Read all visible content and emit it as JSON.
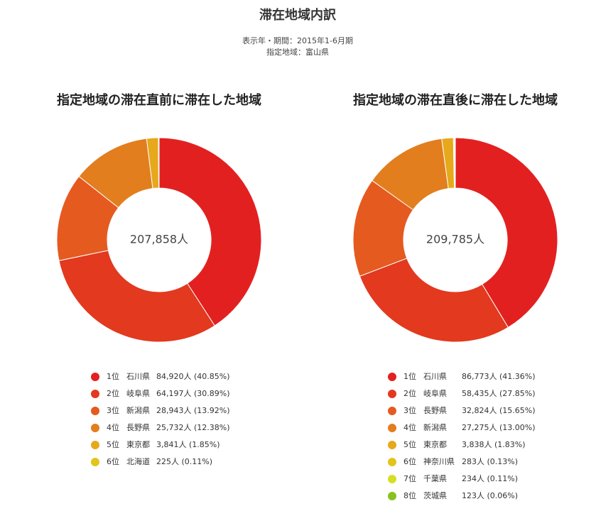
{
  "header": {
    "title": "滞在地域内訳",
    "subtitle": [
      "表示年・期間：2015年1-6月期",
      "指定地域：富山県"
    ]
  },
  "chart_data": [
    {
      "type": "donut",
      "title": "指定地域の滞在直前に滞在した地域",
      "center": {
        "value": 207858,
        "label": "207,858人"
      },
      "ranks": [
        "1位",
        "2位",
        "3位",
        "4位",
        "5位",
        "6位"
      ],
      "categories": [
        "石川県",
        "岐阜県",
        "新潟県",
        "長野県",
        "東京都",
        "北海道"
      ],
      "values": [
        84920,
        64197,
        28943,
        25732,
        3841,
        225
      ],
      "value_labels": [
        "84,920人 (40.85%)",
        "64,197人 (30.89%)",
        "28,943人 (13.92%)",
        "25,732人 (12.38%)",
        "3,841人 (1.85%)",
        "225人 (0.11%)"
      ],
      "colors": [
        "#e32020",
        "#e2391f",
        "#e55a1f",
        "#e27e1e",
        "#e6a91b",
        "#e2c41c"
      ]
    },
    {
      "type": "donut",
      "title": "指定地域の滞在直後に滞在した地域",
      "center": {
        "value": 209785,
        "label": "209,785人"
      },
      "ranks": [
        "1位",
        "2位",
        "3位",
        "4位",
        "5位",
        "6位",
        "7位",
        "8位"
      ],
      "categories": [
        "石川県",
        "岐阜県",
        "長野県",
        "新潟県",
        "東京都",
        "神奈川県",
        "千葉県",
        "茨城県"
      ],
      "values": [
        86773,
        58435,
        32824,
        27275,
        3838,
        283,
        234,
        123
      ],
      "value_labels": [
        "86,773人 (41.36%)",
        "58,435人 (27.85%)",
        "32,824人 (15.65%)",
        "27,275人 (13.00%)",
        "3,838人 (1.83%)",
        "283人 (0.13%)",
        "234人 (0.11%)",
        "123人 (0.06%)"
      ],
      "colors": [
        "#e32020",
        "#e2391f",
        "#e55a1f",
        "#e27e1e",
        "#e6a91b",
        "#e2c41c",
        "#d4e021",
        "#8ac11e"
      ]
    }
  ]
}
